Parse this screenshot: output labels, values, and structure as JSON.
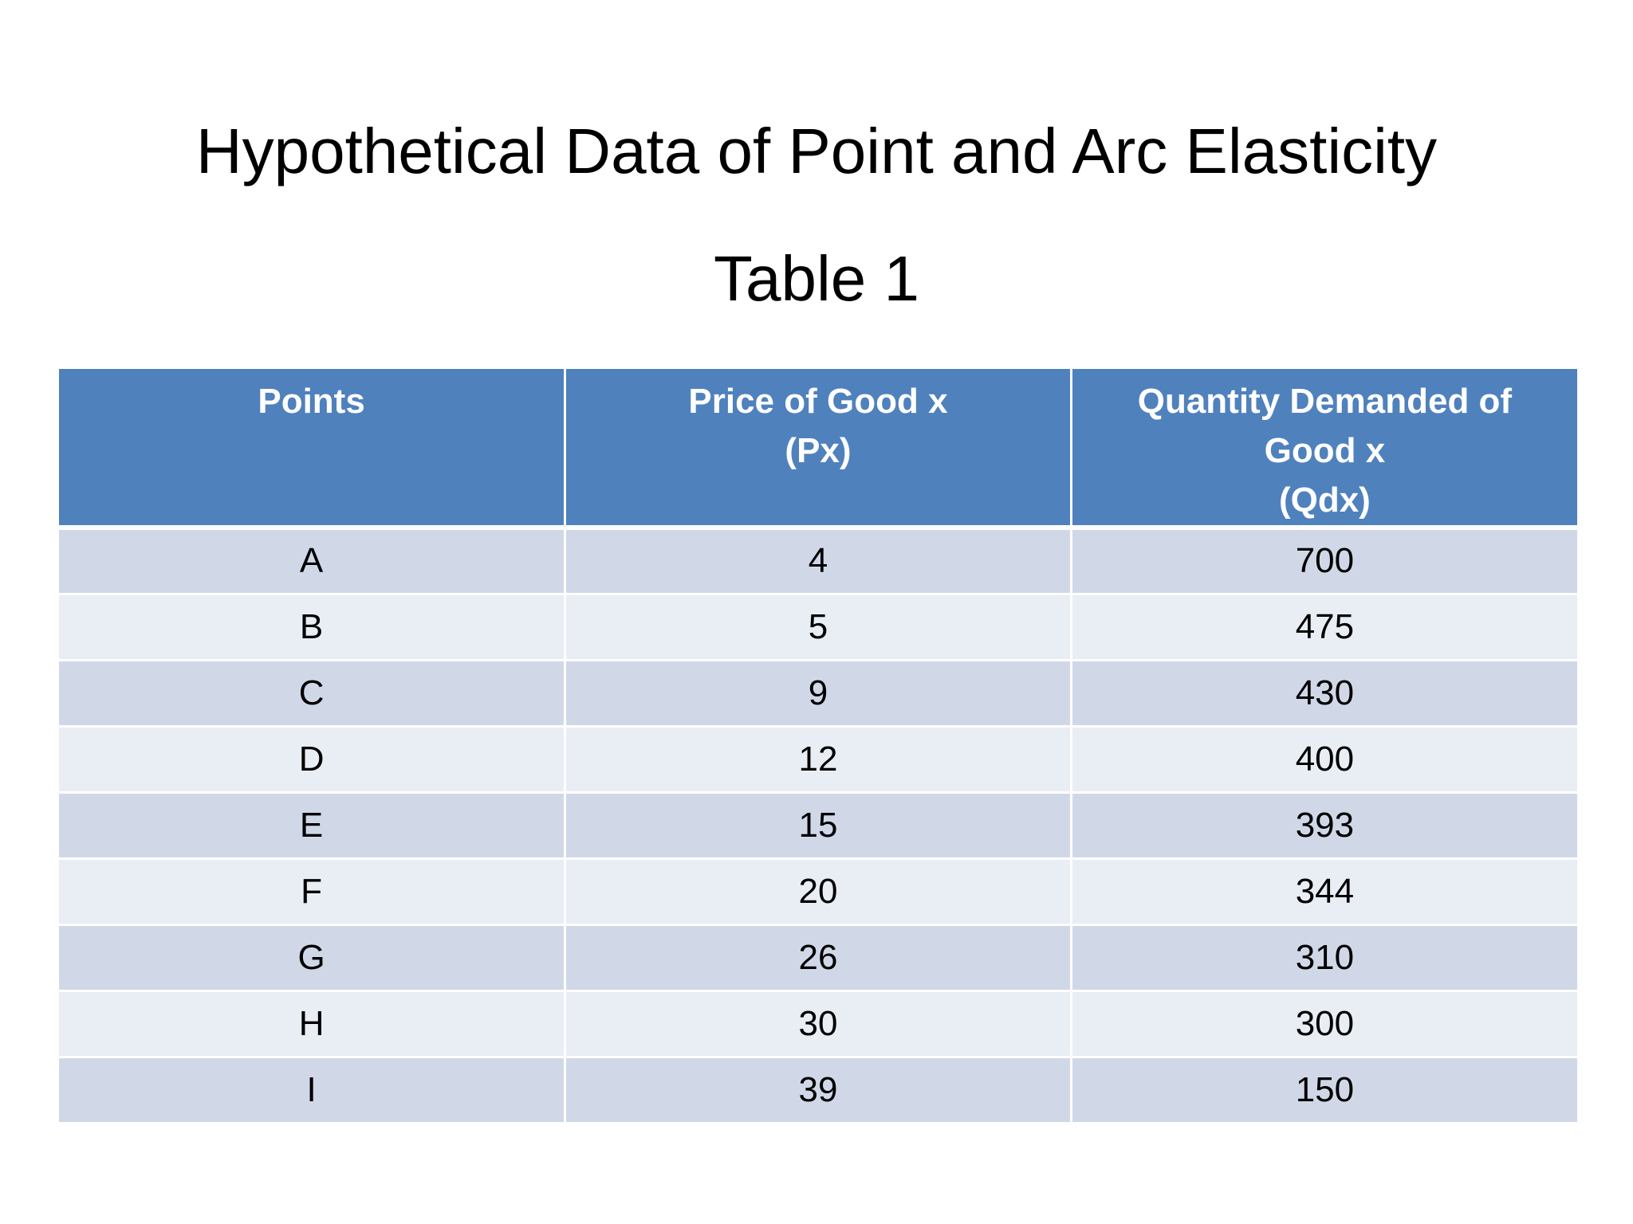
{
  "slide": {
    "title": "Hypothetical Data of Point and Arc Elasticity",
    "subtitle": "Table 1"
  },
  "table": {
    "headers": [
      [
        "Points"
      ],
      [
        "Price of Good x",
        "(Px)"
      ],
      [
        "Quantity Demanded of",
        "Good x",
        "(Qdx)"
      ]
    ],
    "rows": [
      [
        "A",
        "4",
        "700"
      ],
      [
        "B",
        "5",
        "475"
      ],
      [
        "C",
        "9",
        "430"
      ],
      [
        "D",
        "12",
        "400"
      ],
      [
        "E",
        "15",
        "393"
      ],
      [
        "F",
        "20",
        "344"
      ],
      [
        "G",
        "26",
        "310"
      ],
      [
        "H",
        "30",
        "300"
      ],
      [
        "I",
        "39",
        "150"
      ]
    ]
  },
  "colors": {
    "header_bg": "#4f81bd",
    "row_odd_bg": "#d0d8e8",
    "row_even_bg": "#e9edf4"
  }
}
